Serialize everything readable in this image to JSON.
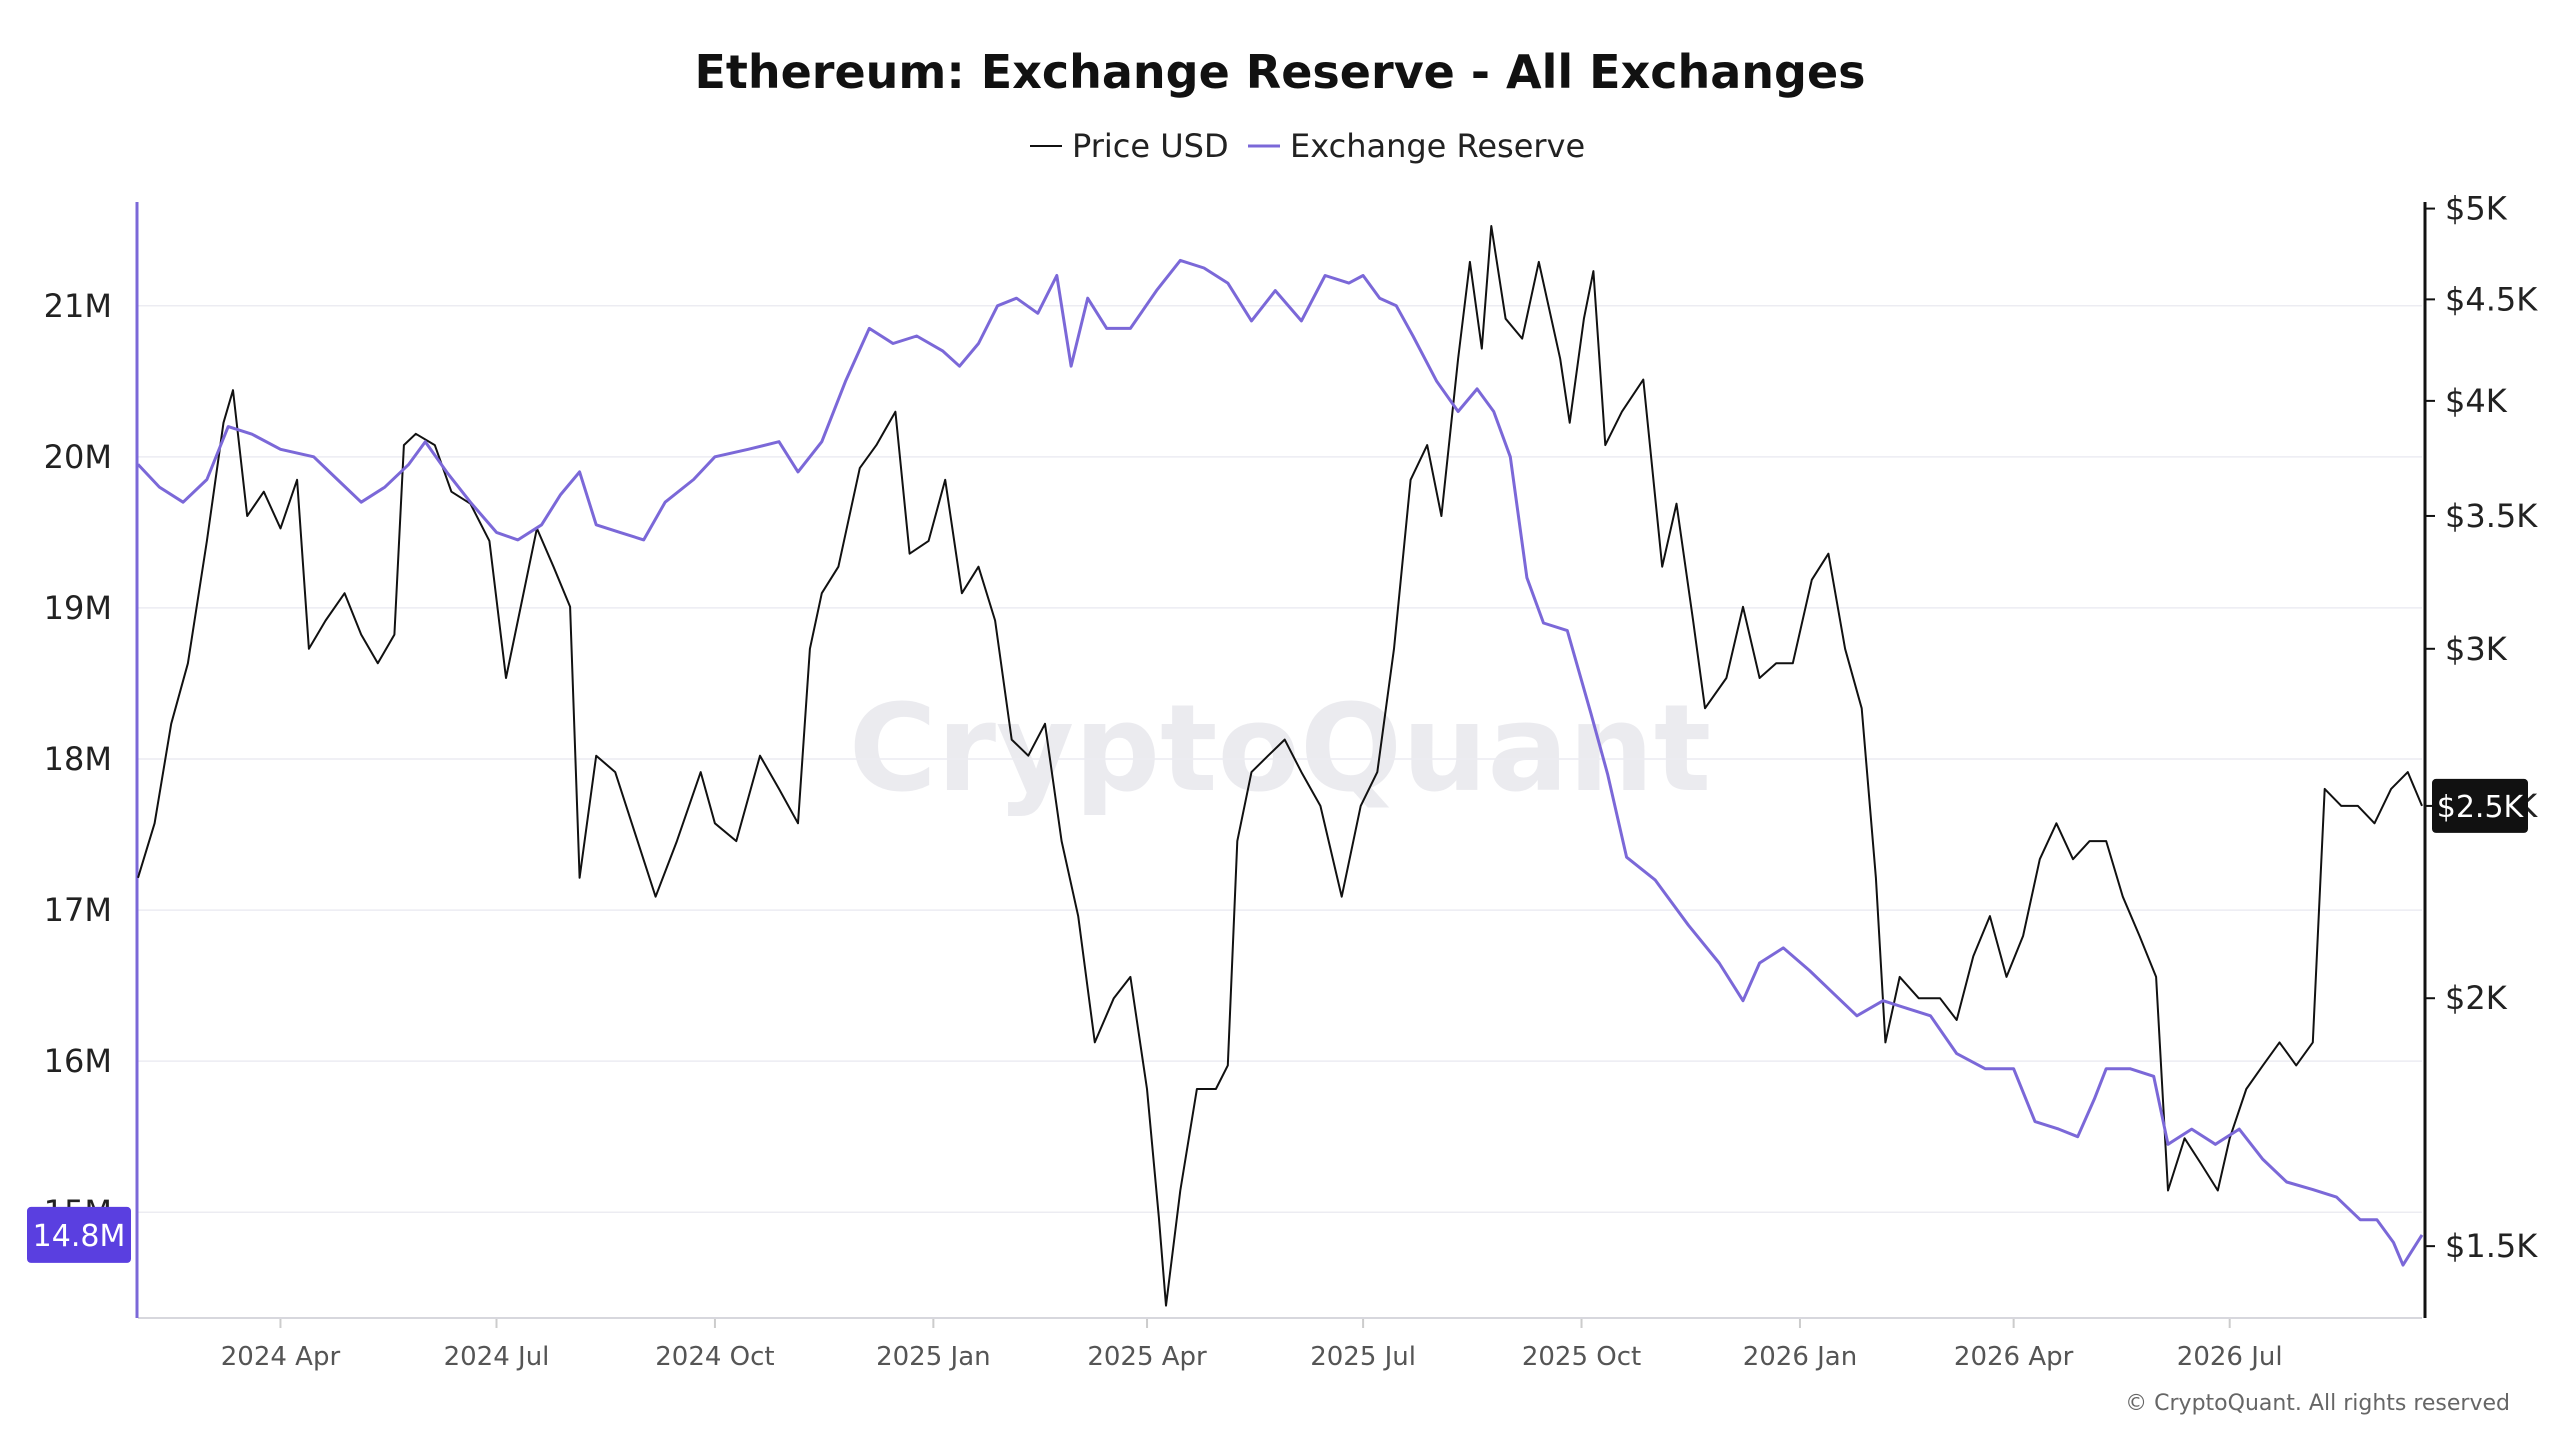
{
  "chart_data": {
    "type": "line",
    "title": "Ethereum: Exchange Reserve - All Exchanges",
    "watermark": "CryptoQuant",
    "copyright": "© CryptoQuant. All rights reserved",
    "legend": {
      "placement": "top-center",
      "items": [
        "Price USD",
        "Exchange Reserve"
      ]
    },
    "grid": true,
    "x_axis": {
      "type": "date",
      "range": [
        "2024-02-01",
        "2026-09-20"
      ],
      "ticks": [
        {
          "date": "2024-04-01",
          "label": "2024 Apr"
        },
        {
          "date": "2024-07-01",
          "label": "2024 Jul"
        },
        {
          "date": "2024-10-01",
          "label": "2024 Oct"
        },
        {
          "date": "2025-01-01",
          "label": "2025 Jan"
        },
        {
          "date": "2025-04-01",
          "label": "2025 Apr"
        },
        {
          "date": "2025-07-01",
          "label": "2025 Jul"
        },
        {
          "date": "2025-10-01",
          "label": "2025 Oct"
        },
        {
          "date": "2026-01-01",
          "label": "2026 Jan"
        },
        {
          "date": "2026-04-01",
          "label": "2026 Apr"
        },
        {
          "date": "2026-07-01",
          "label": "2026 Jul"
        }
      ]
    },
    "y_left": {
      "range": [
        14.3,
        21.7
      ],
      "ticks": [
        {
          "value": 21,
          "label": "21M"
        },
        {
          "value": 20,
          "label": "20M"
        },
        {
          "value": 19,
          "label": "19M"
        },
        {
          "value": 18,
          "label": "18M"
        },
        {
          "value": 17,
          "label": "17M"
        },
        {
          "value": 16,
          "label": "16M"
        },
        {
          "value": 15,
          "label": "15M"
        }
      ],
      "current_value_label": "14.8M"
    },
    "y_right": {
      "scale": "log",
      "range": [
        1380,
        5050
      ],
      "ticks": [
        {
          "value": 5000,
          "label": "$5K"
        },
        {
          "value": 4500,
          "label": "$4.5K"
        },
        {
          "value": 4000,
          "label": "$4K"
        },
        {
          "value": 3500,
          "label": "$3.5K"
        },
        {
          "value": 3000,
          "label": "$3K"
        },
        {
          "value": 2500,
          "label": "$2.5K"
        },
        {
          "value": 2000,
          "label": "$2K"
        },
        {
          "value": 1500,
          "label": "$1.5K"
        }
      ],
      "current_value_label": "$2.5K"
    },
    "series": [
      {
        "name": "Price USD",
        "axis": "right",
        "color": "#111111",
        "points": [
          [
            "2024-02-01",
            2300
          ],
          [
            "2024-02-08",
            2450
          ],
          [
            "2024-02-15",
            2750
          ],
          [
            "2024-02-22",
            2950
          ],
          [
            "2024-03-01",
            3400
          ],
          [
            "2024-03-08",
            3900
          ],
          [
            "2024-03-12",
            4050
          ],
          [
            "2024-03-18",
            3500
          ],
          [
            "2024-03-25",
            3600
          ],
          [
            "2024-04-01",
            3450
          ],
          [
            "2024-04-08",
            3650
          ],
          [
            "2024-04-13",
            3000
          ],
          [
            "2024-04-20",
            3100
          ],
          [
            "2024-04-28",
            3200
          ],
          [
            "2024-05-05",
            3050
          ],
          [
            "2024-05-12",
            2950
          ],
          [
            "2024-05-19",
            3050
          ],
          [
            "2024-05-23",
            3800
          ],
          [
            "2024-05-28",
            3850
          ],
          [
            "2024-06-05",
            3800
          ],
          [
            "2024-06-12",
            3600
          ],
          [
            "2024-06-20",
            3550
          ],
          [
            "2024-06-28",
            3400
          ],
          [
            "2024-07-05",
            2900
          ],
          [
            "2024-07-10",
            3100
          ],
          [
            "2024-07-18",
            3450
          ],
          [
            "2024-07-25",
            3300
          ],
          [
            "2024-08-01",
            3150
          ],
          [
            "2024-08-05",
            2300
          ],
          [
            "2024-08-12",
            2650
          ],
          [
            "2024-08-20",
            2600
          ],
          [
            "2024-08-27",
            2450
          ],
          [
            "2024-09-06",
            2250
          ],
          [
            "2024-09-15",
            2400
          ],
          [
            "2024-09-25",
            2600
          ],
          [
            "2024-10-01",
            2450
          ],
          [
            "2024-10-10",
            2400
          ],
          [
            "2024-10-20",
            2650
          ],
          [
            "2024-10-28",
            2550
          ],
          [
            "2024-11-05",
            2450
          ],
          [
            "2024-11-10",
            3000
          ],
          [
            "2024-11-15",
            3200
          ],
          [
            "2024-11-22",
            3300
          ],
          [
            "2024-12-01",
            3700
          ],
          [
            "2024-12-08",
            3800
          ],
          [
            "2024-12-16",
            3950
          ],
          [
            "2024-12-22",
            3350
          ],
          [
            "2024-12-30",
            3400
          ],
          [
            "2025-01-06",
            3650
          ],
          [
            "2025-01-13",
            3200
          ],
          [
            "2025-01-20",
            3300
          ],
          [
            "2025-01-27",
            3100
          ],
          [
            "2025-02-03",
            2700
          ],
          [
            "2025-02-10",
            2650
          ],
          [
            "2025-02-17",
            2750
          ],
          [
            "2025-02-24",
            2400
          ],
          [
            "2025-03-03",
            2200
          ],
          [
            "2025-03-10",
            1900
          ],
          [
            "2025-03-18",
            2000
          ],
          [
            "2025-03-25",
            2050
          ],
          [
            "2025-04-01",
            1800
          ],
          [
            "2025-04-06",
            1550
          ],
          [
            "2025-04-09",
            1400
          ],
          [
            "2025-04-15",
            1600
          ],
          [
            "2025-04-22",
            1800
          ],
          [
            "2025-04-30",
            1800
          ],
          [
            "2025-05-05",
            1850
          ],
          [
            "2025-05-09",
            2400
          ],
          [
            "2025-05-15",
            2600
          ],
          [
            "2025-05-22",
            2650
          ],
          [
            "2025-05-29",
            2700
          ],
          [
            "2025-06-05",
            2600
          ],
          [
            "2025-06-13",
            2500
          ],
          [
            "2025-06-22",
            2250
          ],
          [
            "2025-06-30",
            2500
          ],
          [
            "2025-07-07",
            2600
          ],
          [
            "2025-07-14",
            3000
          ],
          [
            "2025-07-21",
            3650
          ],
          [
            "2025-07-28",
            3800
          ],
          [
            "2025-08-03",
            3500
          ],
          [
            "2025-08-10",
            4200
          ],
          [
            "2025-08-15",
            4700
          ],
          [
            "2025-08-20",
            4250
          ],
          [
            "2025-08-24",
            4900
          ],
          [
            "2025-08-30",
            4400
          ],
          [
            "2025-09-06",
            4300
          ],
          [
            "2025-09-13",
            4700
          ],
          [
            "2025-09-22",
            4200
          ],
          [
            "2025-09-26",
            3900
          ],
          [
            "2025-10-02",
            4400
          ],
          [
            "2025-10-06",
            4650
          ],
          [
            "2025-10-11",
            3800
          ],
          [
            "2025-10-18",
            3950
          ],
          [
            "2025-10-27",
            4100
          ],
          [
            "2025-11-04",
            3300
          ],
          [
            "2025-11-10",
            3550
          ],
          [
            "2025-11-17",
            3100
          ],
          [
            "2025-11-22",
            2800
          ],
          [
            "2025-12-01",
            2900
          ],
          [
            "2025-12-08",
            3150
          ],
          [
            "2025-12-15",
            2900
          ],
          [
            "2025-12-22",
            2950
          ],
          [
            "2025-12-29",
            2950
          ],
          [
            "2026-01-06",
            3250
          ],
          [
            "2026-01-13",
            3350
          ],
          [
            "2026-01-20",
            3000
          ],
          [
            "2026-01-27",
            2800
          ],
          [
            "2026-02-02",
            2300
          ],
          [
            "2026-02-06",
            1900
          ],
          [
            "2026-02-12",
            2050
          ],
          [
            "2026-02-20",
            2000
          ],
          [
            "2026-03-01",
            2000
          ],
          [
            "2026-03-08",
            1950
          ],
          [
            "2026-03-15",
            2100
          ],
          [
            "2026-03-22",
            2200
          ],
          [
            "2026-03-29",
            2050
          ],
          [
            "2026-04-05",
            2150
          ],
          [
            "2026-04-12",
            2350
          ],
          [
            "2026-04-19",
            2450
          ],
          [
            "2026-04-26",
            2350
          ],
          [
            "2026-05-03",
            2400
          ],
          [
            "2026-05-10",
            2400
          ],
          [
            "2026-05-17",
            2250
          ],
          [
            "2026-05-24",
            2150
          ],
          [
            "2026-05-31",
            2050
          ],
          [
            "2026-06-05",
            1600
          ],
          [
            "2026-06-12",
            1700
          ],
          [
            "2026-06-19",
            1650
          ],
          [
            "2026-06-26",
            1600
          ],
          [
            "2026-07-01",
            1700
          ],
          [
            "2026-07-08",
            1800
          ],
          [
            "2026-07-15",
            1850
          ],
          [
            "2026-07-22",
            1900
          ],
          [
            "2026-07-29",
            1850
          ],
          [
            "2026-08-05",
            1900
          ],
          [
            "2026-08-10",
            2550
          ],
          [
            "2026-08-17",
            2500
          ],
          [
            "2026-08-24",
            2500
          ],
          [
            "2026-08-31",
            2450
          ],
          [
            "2026-09-07",
            2550
          ],
          [
            "2026-09-14",
            2600
          ],
          [
            "2026-09-20",
            2500
          ]
        ]
      },
      {
        "name": "Exchange Reserve",
        "axis": "left",
        "color": "#7b68d8",
        "points": [
          [
            "2024-02-01",
            19.95
          ],
          [
            "2024-02-10",
            19.8
          ],
          [
            "2024-02-20",
            19.7
          ],
          [
            "2024-03-01",
            19.85
          ],
          [
            "2024-03-10",
            20.2
          ],
          [
            "2024-03-20",
            20.15
          ],
          [
            "2024-04-01",
            20.05
          ],
          [
            "2024-04-15",
            20.0
          ],
          [
            "2024-04-25",
            19.85
          ],
          [
            "2024-05-05",
            19.7
          ],
          [
            "2024-05-15",
            19.8
          ],
          [
            "2024-05-25",
            19.95
          ],
          [
            "2024-06-01",
            20.1
          ],
          [
            "2024-06-10",
            19.9
          ],
          [
            "2024-06-20",
            19.7
          ],
          [
            "2024-07-01",
            19.5
          ],
          [
            "2024-07-10",
            19.45
          ],
          [
            "2024-07-20",
            19.55
          ],
          [
            "2024-07-28",
            19.75
          ],
          [
            "2024-08-05",
            19.9
          ],
          [
            "2024-08-12",
            19.55
          ],
          [
            "2024-08-22",
            19.5
          ],
          [
            "2024-09-01",
            19.45
          ],
          [
            "2024-09-10",
            19.7
          ],
          [
            "2024-09-22",
            19.85
          ],
          [
            "2024-10-01",
            20.0
          ],
          [
            "2024-10-15",
            20.05
          ],
          [
            "2024-10-28",
            20.1
          ],
          [
            "2024-11-05",
            19.9
          ],
          [
            "2024-11-15",
            20.1
          ],
          [
            "2024-11-25",
            20.5
          ],
          [
            "2024-12-05",
            20.85
          ],
          [
            "2024-12-15",
            20.75
          ],
          [
            "2024-12-25",
            20.8
          ],
          [
            "2025-01-05",
            20.7
          ],
          [
            "2025-01-12",
            20.6
          ],
          [
            "2025-01-20",
            20.75
          ],
          [
            "2025-01-28",
            21.0
          ],
          [
            "2025-02-05",
            21.05
          ],
          [
            "2025-02-14",
            20.95
          ],
          [
            "2025-02-22",
            21.2
          ],
          [
            "2025-02-28",
            20.6
          ],
          [
            "2025-03-07",
            21.05
          ],
          [
            "2025-03-15",
            20.85
          ],
          [
            "2025-03-25",
            20.85
          ],
          [
            "2025-04-05",
            21.1
          ],
          [
            "2025-04-15",
            21.3
          ],
          [
            "2025-04-25",
            21.25
          ],
          [
            "2025-05-05",
            21.15
          ],
          [
            "2025-05-15",
            20.9
          ],
          [
            "2025-05-25",
            21.1
          ],
          [
            "2025-06-05",
            20.9
          ],
          [
            "2025-06-15",
            21.2
          ],
          [
            "2025-06-25",
            21.15
          ],
          [
            "2025-07-01",
            21.2
          ],
          [
            "2025-07-08",
            21.05
          ],
          [
            "2025-07-15",
            21.0
          ],
          [
            "2025-07-22",
            20.8
          ],
          [
            "2025-08-01",
            20.5
          ],
          [
            "2025-08-10",
            20.3
          ],
          [
            "2025-08-18",
            20.45
          ],
          [
            "2025-08-25",
            20.3
          ],
          [
            "2025-09-01",
            20.0
          ],
          [
            "2025-09-08",
            19.2
          ],
          [
            "2025-09-15",
            18.9
          ],
          [
            "2025-09-25",
            18.85
          ],
          [
            "2025-10-05",
            18.3
          ],
          [
            "2025-10-12",
            17.9
          ],
          [
            "2025-10-20",
            17.35
          ],
          [
            "2025-11-01",
            17.2
          ],
          [
            "2025-11-15",
            16.9
          ],
          [
            "2025-11-28",
            16.65
          ],
          [
            "2025-12-08",
            16.4
          ],
          [
            "2025-12-15",
            16.65
          ],
          [
            "2025-12-25",
            16.75
          ],
          [
            "2026-01-05",
            16.6
          ],
          [
            "2026-01-15",
            16.45
          ],
          [
            "2026-01-25",
            16.3
          ],
          [
            "2026-02-05",
            16.4
          ],
          [
            "2026-02-15",
            16.35
          ],
          [
            "2026-02-25",
            16.3
          ],
          [
            "2026-03-08",
            16.05
          ],
          [
            "2026-03-20",
            15.95
          ],
          [
            "2026-04-01",
            15.95
          ],
          [
            "2026-04-10",
            15.6
          ],
          [
            "2026-04-20",
            15.55
          ],
          [
            "2026-04-28",
            15.5
          ],
          [
            "2026-05-05",
            15.75
          ],
          [
            "2026-05-10",
            15.95
          ],
          [
            "2026-05-20",
            15.95
          ],
          [
            "2026-05-30",
            15.9
          ],
          [
            "2026-06-05",
            15.45
          ],
          [
            "2026-06-15",
            15.55
          ],
          [
            "2026-06-25",
            15.45
          ],
          [
            "2026-07-05",
            15.55
          ],
          [
            "2026-07-15",
            15.35
          ],
          [
            "2026-07-25",
            15.2
          ],
          [
            "2026-08-05",
            15.15
          ],
          [
            "2026-08-15",
            15.1
          ],
          [
            "2026-08-25",
            14.95
          ],
          [
            "2026-09-01",
            14.95
          ],
          [
            "2026-09-08",
            14.8
          ],
          [
            "2026-09-12",
            14.65
          ],
          [
            "2026-09-20",
            14.85
          ]
        ]
      }
    ]
  }
}
